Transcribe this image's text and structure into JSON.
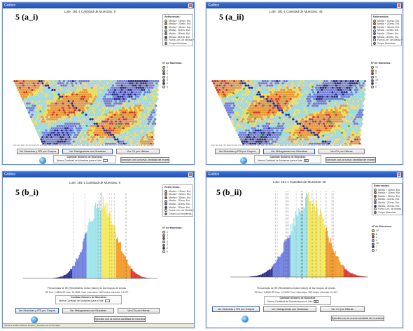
{
  "panels": {
    "a_i": {
      "window_title": "Gráfico",
      "label": "5 (a_i)",
      "lote_text": "Lote: 181-1    Cantidad de Muestras: 9",
      "legend_title": "Referencias:",
      "legend_items": [
        {
          "label": "Media + 1Desv. Est.",
          "color": "#f4e85c"
        },
        {
          "label": "Media + 2Desv. Est.",
          "color": "#f39a2a"
        },
        {
          "label": "Media + 3Desv. Est.",
          "color": "#d9362a"
        },
        {
          "label": "Media - 1Desv. Est.",
          "color": "#9ee3ea"
        },
        {
          "label": "Media - 2Desv. Est.",
          "color": "#6f7de0"
        },
        {
          "label": "Media - 3Desv. Est.",
          "color": "#2a2f8a"
        },
        {
          "label": "Fuera Lím. de Media +/- 3Desv. Est.",
          "color": "#ffffff"
        },
        {
          "label": "Grupo Muestras",
          "color": "#3fae4d"
        }
      ],
      "n_title": "Nº de Muestras:",
      "n_items": [
        {
          "label": "1",
          "color": "#f4e85c"
        },
        {
          "label": "2",
          "color": "#f39a2a"
        },
        {
          "label": "1",
          "color": "#d9362a"
        },
        {
          "label": "2",
          "color": "#9ee3ea"
        },
        {
          "label": "3",
          "color": "#6f7de0"
        },
        {
          "label": "0",
          "color": "#2a2f8a"
        },
        {
          "label": "0",
          "color": "#ffffff"
        }
      ],
      "buttons": [
        "Ver Muestras y FRI por Grupos",
        "Ver Histogramas con Muestras",
        "Ver CV por Hileras"
      ],
      "fieldset_title": "Cambiar Número de Muestras",
      "fieldset_row": "Nueva Cantidad de Muestras para el lote:",
      "fieldset_button": "Ejecutar con la nueva cantidad de muestras"
    },
    "a_ii": {
      "window_title": "Gráfico",
      "label": "5 (a_ii)",
      "lote_text": "Lote: 181-1    Cantidad de Muestras: 46",
      "legend_title": "Referencias:",
      "legend_items": [
        {
          "label": "Media + 1Desv. Est.",
          "color": "#f4e85c"
        },
        {
          "label": "Media + 2Desv. Est.",
          "color": "#f39a2a"
        },
        {
          "label": "Media + 3Desv. Est.",
          "color": "#d9362a"
        },
        {
          "label": "Media - 1Desv. Est.",
          "color": "#9ee3ea"
        },
        {
          "label": "Media - 2Desv. Est.",
          "color": "#6f7de0"
        },
        {
          "label": "Media - 3Desv. Est.",
          "color": "#2a2f8a"
        },
        {
          "label": "Fuera Lím. de Media +/- 3Desv. Est.",
          "color": "#ffffff"
        },
        {
          "label": "Grupo Muestras",
          "color": "#3fae4d"
        }
      ],
      "n_title": "Nº de Muestras:",
      "n_items": [
        {
          "label": "10",
          "color": "#f4e85c"
        },
        {
          "label": "8",
          "color": "#f39a2a"
        },
        {
          "label": "2",
          "color": "#d9362a"
        },
        {
          "label": "9",
          "color": "#9ee3ea"
        },
        {
          "label": "10",
          "color": "#6f7de0"
        },
        {
          "label": "7",
          "color": "#2a2f8a"
        },
        {
          "label": "0",
          "color": "#ffffff"
        }
      ],
      "buttons": [
        "Ver Muestras y FRI por Grupos",
        "Ver Histogramas con Muestras",
        "Ver CV por Hileras"
      ],
      "fieldset_title": "Cambiar Número de Muestras",
      "fieldset_row": "Nueva Cantidad de Muestras para el lote:",
      "fieldset_value": "46",
      "fieldset_button": "Ejecutar con la nueva cantidad de muestras"
    },
    "b_i": {
      "window_title": "Gráfico",
      "label": "5 (b_i)",
      "lote_text": "Lote: 181-1    Cantidad de Muestras: 9",
      "legend_title": "Referencias:",
      "legend_items": [
        {
          "label": "Media + 1Desv. Est.",
          "color": "#f4e85c"
        },
        {
          "label": "Media + 2Desv. Est.",
          "color": "#f39a2a"
        },
        {
          "label": "Media + 3Desv. Est.",
          "color": "#d9362a"
        },
        {
          "label": "Media - 1Desv. Est.",
          "color": "#9ee3ea"
        },
        {
          "label": "Media - 2Desv. Est.",
          "color": "#6f7de0"
        },
        {
          "label": "Media - 3Desv. Est.",
          "color": "#2a2f8a"
        },
        {
          "label": "Fuera Lím. de Media +/- 3Desv. Est.",
          "color": "#ffffff"
        },
        {
          "label": "Grupo con muestras",
          "color": "#3fae4d"
        }
      ],
      "n_title": "Nº de Muestras:",
      "n_items": [
        {
          "label": "1",
          "color": "#f4e85c"
        },
        {
          "label": "2",
          "color": "#f39a2a"
        },
        {
          "label": "1",
          "color": "#d9362a"
        },
        {
          "label": "2",
          "color": "#9ee3ea"
        },
        {
          "label": "3",
          "color": "#6f7de0"
        },
        {
          "label": "0",
          "color": "#2a2f8a"
        },
        {
          "label": "0",
          "color": "#ffffff"
        }
      ],
      "xlabel": "Frecuencias de IRI (Rendimiento Índice Indice) de los Grupos de Lineas",
      "stats": "IRI Hos: 1,8825    IRI Hos: 13,2581    Cant. Intervalos: 180    Ancho Intervalo: 0,1227",
      "buttons": [
        "Ver Muestras y FRI por Grupos",
        "Ver Histogramas con Muestras",
        "Ver CV por Hileras"
      ],
      "fieldset_title": "Cambiar Número de Muestras",
      "fieldset_row": "Nueva Cantidad de Muestras para el lote:",
      "fieldset_button": "Ejecutar con la nueva cantidad de muestras",
      "status_text": "Ventana Gráfico    Graficar Grupos y Muestras de Porcentajes"
    },
    "b_ii": {
      "window_title": "Gráfico",
      "label": "5 (b_ii)",
      "lote_text": "Lote: 181-1    Cantidad de Muestras: 46",
      "legend_title": "Referencias:",
      "legend_items": [
        {
          "label": "Media + 1Desv. Est.",
          "color": "#f4e85c"
        },
        {
          "label": "Media + 2Desv. Est.",
          "color": "#f39a2a"
        },
        {
          "label": "Media + 3Desv. Est.",
          "color": "#d9362a"
        },
        {
          "label": "Media - 1Desv. Est.",
          "color": "#9ee3ea"
        },
        {
          "label": "Media - 2Desv. Est.",
          "color": "#6f7de0"
        },
        {
          "label": "Media - 3Desv. Est.",
          "color": "#2a2f8a"
        },
        {
          "label": "Fuera Lím. de Media +/- 3Desv. Est.",
          "color": "#ffffff"
        },
        {
          "label": "Grupo Muestras",
          "color": "#3fae4d"
        }
      ],
      "n_title": "Nº de Muestras:",
      "n_items": [
        {
          "label": "10",
          "color": "#f4e85c"
        },
        {
          "label": "8",
          "color": "#f39a2a"
        },
        {
          "label": "2",
          "color": "#d9362a"
        },
        {
          "label": "9",
          "color": "#9ee3ea"
        },
        {
          "label": "10",
          "color": "#6f7de0"
        },
        {
          "label": "7",
          "color": "#2a2f8a"
        },
        {
          "label": "0",
          "color": "#ffffff"
        }
      ],
      "xlabel": "Frecuencias de IRI (Rendimiento Índice Indice) de los Grupos de Lineas",
      "stats": "IRI Hos: 0,8006    IRI Hos: 13,3625    Cant. Intervalos: 180    Ancho Intervalo: 0,1227",
      "buttons": [
        "Ver Muestras y FRI por Grupos",
        "Ver Histogramas con Muestras",
        "Ver CV por Hileras"
      ],
      "fieldset_title": "Cambiar Número de Muestras",
      "fieldset_row": "Nueva Cantidad de Muestras para el lote:",
      "fieldset_value": "46",
      "fieldset_button": "Ejecutar con la nueva cantidad de muestras"
    }
  },
  "map_tick_labels": "100 110 120 130 140 150 160 170 180 190 200 210 220 230 240 250 260 270 280 290 300 310 320 330 340 350 360 370 380 390 400 410 420 430 440 450 460",
  "colors": {
    "yellow": "#f4e85c",
    "orange": "#f39a2a",
    "red": "#d9362a",
    "cyan": "#9ee3ea",
    "blue": "#6f7de0",
    "navy": "#2a2f8a",
    "green": "#3fae4d",
    "title_bar": "#1f4fb3"
  }
}
